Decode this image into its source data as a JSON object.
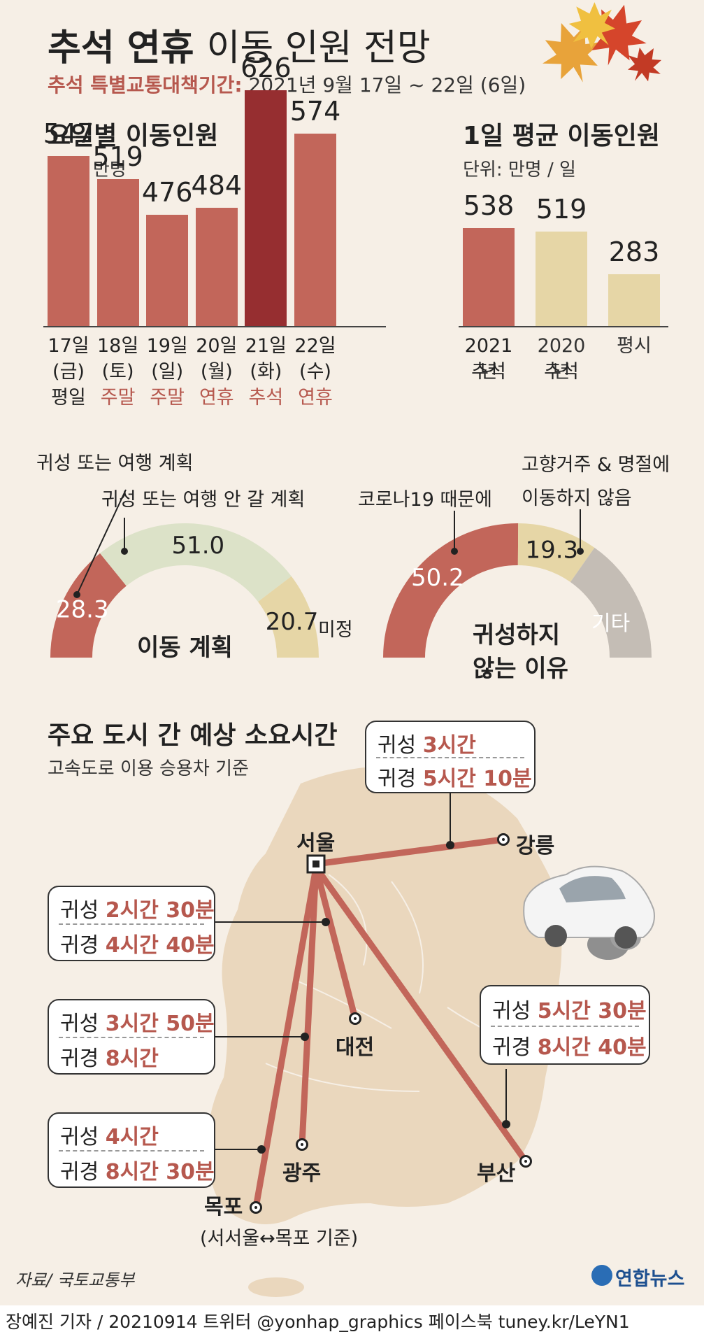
{
  "header": {
    "title_bold": "추석 연휴",
    "title_light": "이동 인원 전망",
    "subtitle_prefix": "추석 특별교통대책기간:",
    "subtitle_period": "2021년 9월 17일 ~ 22일 (6일)"
  },
  "chart_data": [
    {
      "type": "bar",
      "title": "요일별 이동인원",
      "unit": "단위: 만명",
      "categories": [
        "17일 (금) 평일",
        "18일 (토) 주말",
        "19일 (일) 주말",
        "20일 (월) 연휴",
        "21일 (화) 추석",
        "22일 (수) 연휴"
      ],
      "date_labels": [
        "17일",
        "18일",
        "19일",
        "20일",
        "21일",
        "22일"
      ],
      "weekday_labels": [
        "(금)",
        "(토)",
        "(일)",
        "(월)",
        "(화)",
        "(수)"
      ],
      "type_labels": [
        "평일",
        "주말",
        "주말",
        "연휴",
        "추석",
        "연휴"
      ],
      "values": [
        547,
        519,
        476,
        484,
        626,
        574
      ],
      "colors": [
        "#c2665a",
        "#c2665a",
        "#c2665a",
        "#c2665a",
        "#962e30",
        "#c2665a"
      ],
      "type_label_colors": [
        "#222222",
        "#b6584e",
        "#b6584e",
        "#b6584e",
        "#b6584e",
        "#b6584e"
      ]
    },
    {
      "type": "bar",
      "title": "1일 평균 이동인원",
      "unit": "단위: 만명 / 일",
      "labels_line1": [
        "2021년",
        "2020년",
        "평시"
      ],
      "labels_line2": [
        "추석",
        "추석",
        ""
      ],
      "values": [
        538,
        519,
        283
      ],
      "colors": [
        "#c2665a",
        "#e6d6a6",
        "#e6d6a6"
      ]
    },
    {
      "type": "pie",
      "title": "이동 계획",
      "segments": [
        {
          "label": "귀성 또는 여행 계획",
          "value": 28.3,
          "color": "#c2665a"
        },
        {
          "label": "귀성 또는 여행 안 갈 계획",
          "value": 51.0,
          "color": "#dce2c8"
        },
        {
          "label": "미정",
          "value": 20.7,
          "color": "#e6d6a6"
        }
      ]
    },
    {
      "type": "pie",
      "title": "귀성하지 않는 이유",
      "title_line1": "귀성하지",
      "title_line2": "않는 이유",
      "segments": [
        {
          "label": "코로나19 때문에",
          "value": 50.2,
          "color": "#c2665a"
        },
        {
          "label": "고향거주 & 명절에 이동하지 않음",
          "value": 19.3,
          "color": "#e6d6a6"
        },
        {
          "label": "기타",
          "value": 30.5,
          "color": "#c4bdb5"
        }
      ],
      "annotation_line1": "고향거주 & 명절에",
      "annotation_line2": "이동하지 않음",
      "etc_label": "기타"
    }
  ],
  "map": {
    "title": "주요 도시 간 예상 소요시간",
    "subtitle": "고속도로 이용 승용차 기준",
    "cities": {
      "seoul": "서울",
      "gangneung": "강릉",
      "daejeon": "대전",
      "gwangju": "광주",
      "mokpo": "목포",
      "mokpo_note": "(서서울↔목포 기준)",
      "busan": "부산"
    },
    "routes": [
      {
        "id": "gangneung",
        "go_prefix": "귀성",
        "go_time": "3시간",
        "back_prefix": "귀경",
        "back_time": "5시간 10분"
      },
      {
        "id": "daejeon",
        "go_prefix": "귀성",
        "go_time": "2시간 30분",
        "back_prefix": "귀경",
        "back_time": "4시간 40분"
      },
      {
        "id": "gwangju",
        "go_prefix": "귀성",
        "go_time": "3시간 50분",
        "back_prefix": "귀경",
        "back_time": "8시간"
      },
      {
        "id": "mokpo",
        "go_prefix": "귀성",
        "go_time": "4시간",
        "back_prefix": "귀경",
        "back_time": "8시간 30분"
      },
      {
        "id": "busan",
        "go_prefix": "귀성",
        "go_time": "5시간 30분",
        "back_prefix": "귀경",
        "back_time": "8시간 40분"
      }
    ]
  },
  "source": "자료/ 국토교통부",
  "logo": "연합뉴스",
  "credit": "장예진 기자 / 20210914 트위터 @yonhap_graphics  페이스북 tuney.kr/LeYN1",
  "colors": {
    "accent": "#b6584e",
    "dark_accent": "#962e30",
    "background": "#f6efe6"
  }
}
